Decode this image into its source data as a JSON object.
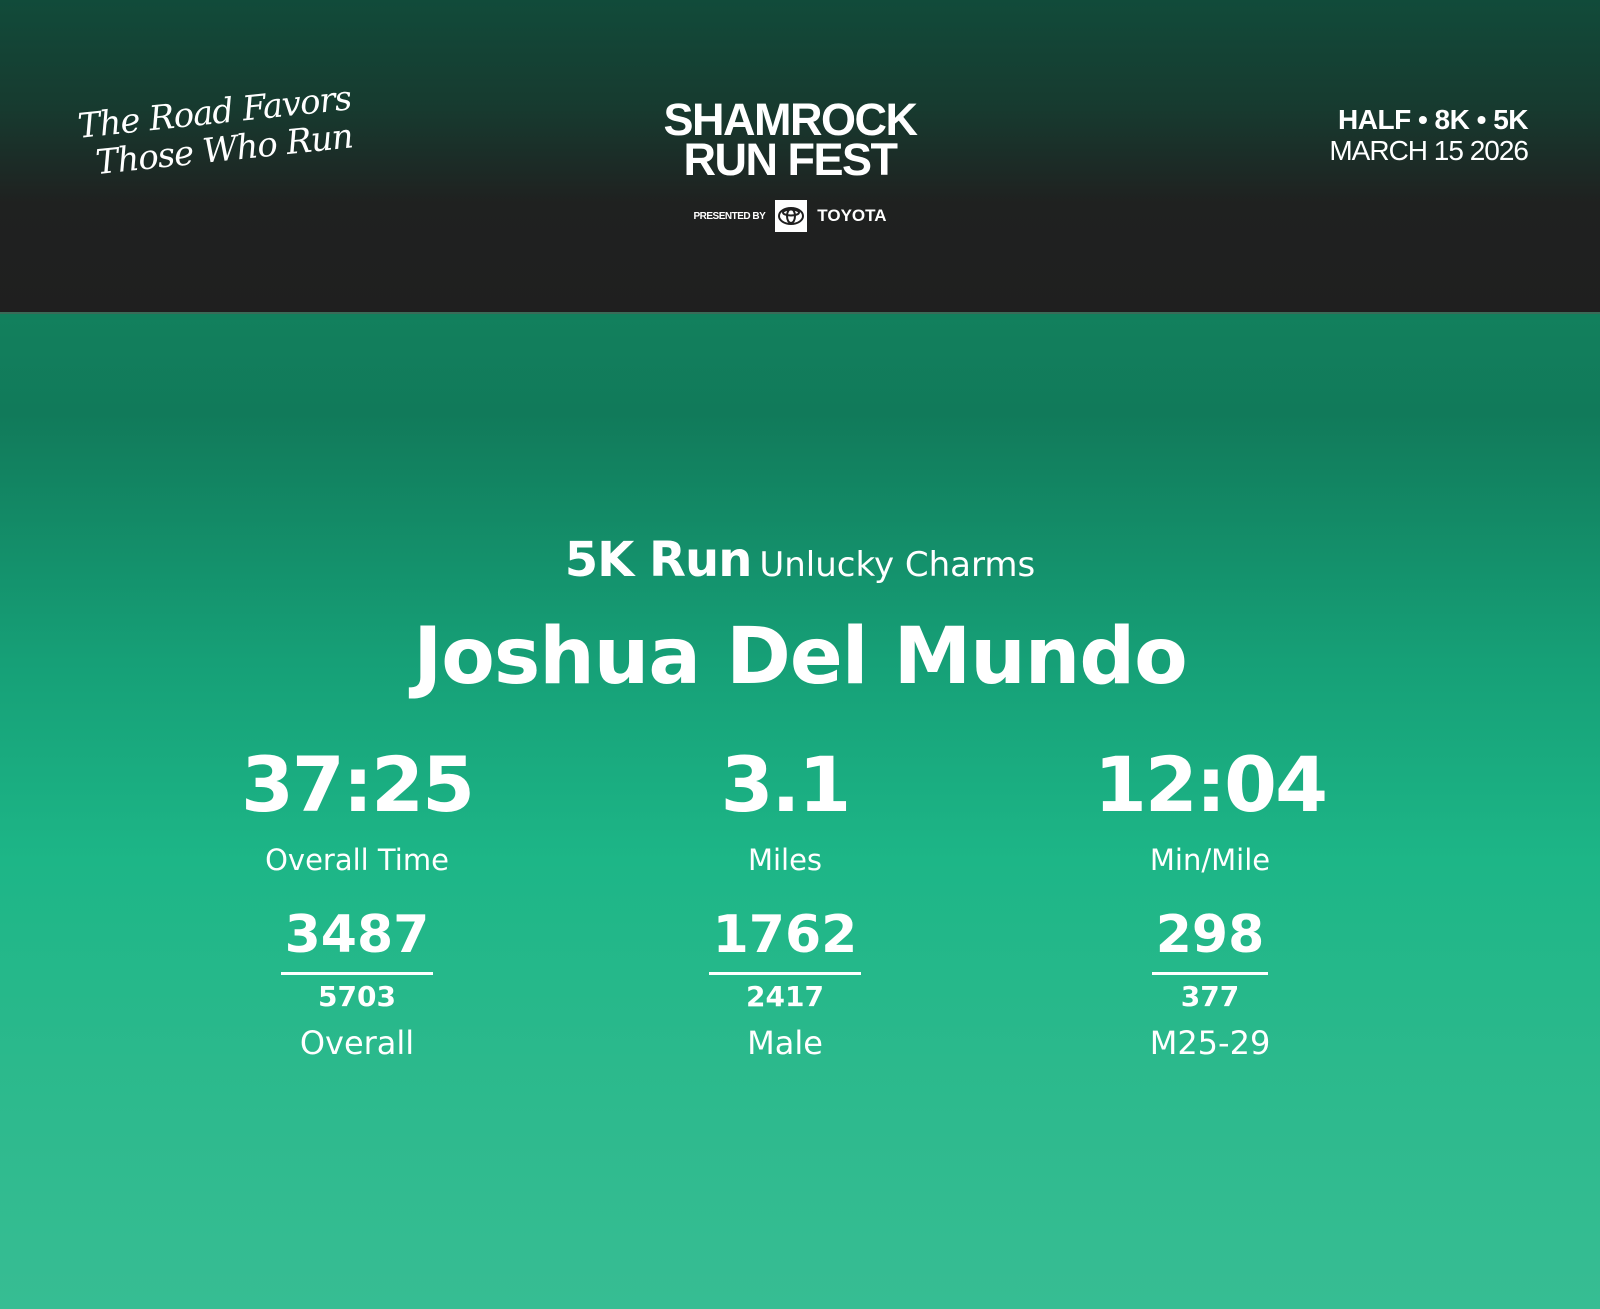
{
  "header": {
    "tagline": [
      "The Road Favors",
      "Those Who Run"
    ],
    "logo": {
      "line1": "SHAMROCK",
      "line2": "RUN FEST",
      "presented_by": "PRESENTED BY",
      "sponsor": "TOYOTA"
    },
    "races": "HALF • 8K • 5K",
    "date": "MARCH 15 2026"
  },
  "result": {
    "race": "5K Run",
    "team": "Unlucky Charms",
    "runner": "Joshua Del Mundo",
    "stats": [
      {
        "value": "37:25",
        "label": "Overall Time"
      },
      {
        "value": "3.1",
        "label": "Miles"
      },
      {
        "value": "12:04",
        "label": "Min/Mile"
      }
    ],
    "ranks": [
      {
        "place": "3487",
        "of": "5703",
        "label": "Overall"
      },
      {
        "place": "1762",
        "of": "2417",
        "label": "Male"
      },
      {
        "place": "298",
        "of": "377",
        "label": "M25-29"
      }
    ]
  },
  "colors": {
    "header_bg": "#1f1f1f",
    "header_top": "#114b3a",
    "main_top": "#12805d",
    "main_bottom": "#37bd93"
  }
}
